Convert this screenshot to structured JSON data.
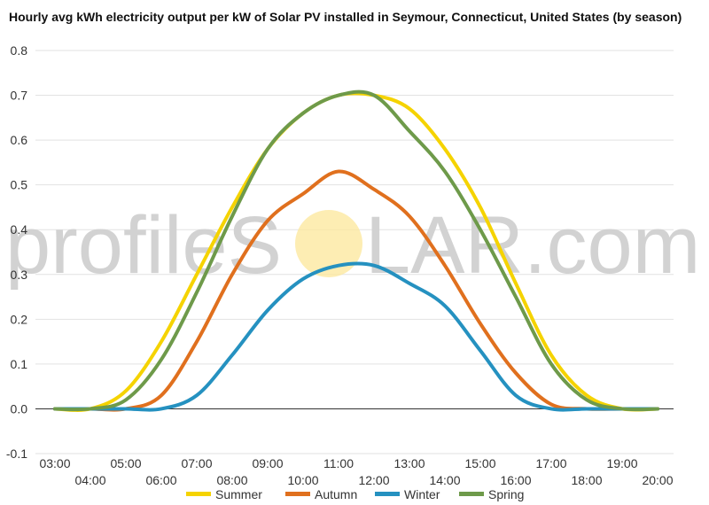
{
  "chart_data": {
    "type": "line",
    "title": "Hourly avg kWh electricity output per kW of Solar PV installed in Seymour, Connecticut, United States (by season)",
    "x": [
      "03:00",
      "04:00",
      "05:00",
      "06:00",
      "07:00",
      "08:00",
      "09:00",
      "10:00",
      "11:00",
      "12:00",
      "13:00",
      "14:00",
      "15:00",
      "16:00",
      "17:00",
      "18:00",
      "19:00",
      "20:00"
    ],
    "ylim": [
      -0.1,
      0.8
    ],
    "yticks": [
      -0.1,
      0.0,
      0.1,
      0.2,
      0.3,
      0.4,
      0.5,
      0.6,
      0.7,
      0.8
    ],
    "ytick_labels": [
      "-0.1",
      "0.0",
      "0.1",
      "0.2",
      "0.3",
      "0.4",
      "0.5",
      "0.6",
      "0.7",
      "0.8"
    ],
    "grid": true,
    "legend_position": "bottom",
    "series": [
      {
        "name": "Summer",
        "color": "#f5d300",
        "values": [
          0.0,
          0.0,
          0.04,
          0.15,
          0.3,
          0.45,
          0.58,
          0.66,
          0.7,
          0.7,
          0.67,
          0.58,
          0.45,
          0.28,
          0.12,
          0.03,
          0.0,
          0.0
        ]
      },
      {
        "name": "Autumn",
        "color": "#e0701e",
        "values": [
          0.0,
          0.0,
          0.0,
          0.03,
          0.15,
          0.3,
          0.42,
          0.48,
          0.53,
          0.49,
          0.43,
          0.32,
          0.19,
          0.08,
          0.01,
          0.0,
          0.0,
          0.0
        ]
      },
      {
        "name": "Winter",
        "color": "#2591c0",
        "values": [
          0.0,
          0.0,
          0.0,
          0.0,
          0.03,
          0.12,
          0.22,
          0.29,
          0.32,
          0.32,
          0.28,
          0.23,
          0.13,
          0.03,
          0.0,
          0.0,
          0.0,
          0.0
        ]
      },
      {
        "name": "Spring",
        "color": "#6e9a4a",
        "values": [
          0.0,
          0.0,
          0.02,
          0.11,
          0.26,
          0.43,
          0.58,
          0.66,
          0.7,
          0.7,
          0.62,
          0.53,
          0.4,
          0.25,
          0.1,
          0.02,
          0.0,
          0.0
        ]
      }
    ]
  },
  "watermark": {
    "text_left": "profileS",
    "text_right": "LAR.com",
    "sun_color": "#fde9a0"
  }
}
